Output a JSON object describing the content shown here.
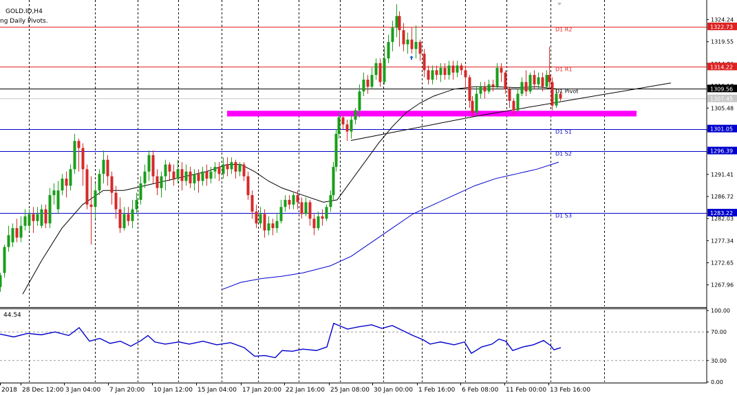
{
  "header": {
    "symbol": "GOLD.ID,H4",
    "indicator": "ng Daily Pivots."
  },
  "rsi_panel": {
    "label": "44.54"
  },
  "chart_data": {
    "type": "candlestick",
    "symbol": "GOLD.ID",
    "timeframe": "H4",
    "price_axis": {
      "range": [
        1263.4,
        1328.4
      ],
      "ticks": [
        1324.24,
        1319.55,
        1314.86,
        1310.17,
        1305.48,
        1300.79,
        1296.1,
        1291.41,
        1286.72,
        1282.03,
        1277.34,
        1272.65,
        1267.96
      ]
    },
    "rsi_axis": {
      "range": [
        0,
        100
      ],
      "ticks": [
        "100.00",
        "70.00",
        "30.00",
        "0.00"
      ]
    },
    "x_tick_labels": [
      "2018",
      "28 Dec 12:00",
      "3 Jan 04:00",
      "7 Jan 20:00",
      "10 Jan 12:00",
      "15 Jan 04:00",
      "17 Jan 20:00",
      "22 Jan 16:00",
      "25 Jan 08:00",
      "30 Jan 00:00",
      "1 Feb 16:00",
      "6 Feb 08:00",
      "11 Feb 00:00",
      "13 Feb 16:00"
    ],
    "pivot_levels": [
      {
        "name": "D1 R2",
        "price": 1322.73,
        "price_label": "1322.73",
        "color": "#dd2222"
      },
      {
        "name": "D1 R1",
        "price": 1314.22,
        "price_label": "1314.22",
        "color": "#dd2222"
      },
      {
        "name": "D1 Pivot",
        "price": 1309.56,
        "price_label": "1309.56",
        "color": "#000000"
      },
      {
        "name": "D1 S1",
        "price": 1301.05,
        "price_label": "1301.05",
        "color": "#0000cc"
      },
      {
        "name": "D1 S2",
        "price": 1296.39,
        "price_label": "1296.39",
        "color": "#0000cc"
      },
      {
        "name": "D1 S3",
        "price": 1283.22,
        "price_label": "1283.22",
        "color": "#0000cc"
      }
    ],
    "current_price": {
      "price": 1307.45,
      "label": "1307.45"
    },
    "support_zone": {
      "price_top": 1304.9,
      "price_bottom": 1303.7,
      "color": "#ff00ff"
    },
    "colors": {
      "bull": "#1a9e1a",
      "bear": "#d42a2a",
      "ma_fast": "#000000",
      "ma_slow": "#0000cc",
      "rsi": "#0000cc"
    },
    "ma_fast_path": [
      [
        33,
        1266
      ],
      [
        60,
        1273
      ],
      [
        90,
        1280
      ],
      [
        120,
        1285
      ],
      [
        150,
        1288
      ],
      [
        180,
        1288
      ],
      [
        210,
        1289
      ],
      [
        240,
        1290
      ],
      [
        270,
        1291
      ],
      [
        300,
        1292
      ],
      [
        330,
        1293.5
      ],
      [
        350,
        1293.5
      ],
      [
        370,
        1292
      ],
      [
        390,
        1290
      ],
      [
        410,
        1288.5
      ],
      [
        440,
        1287
      ],
      [
        470,
        1285.5
      ],
      [
        490,
        1286
      ],
      [
        510,
        1290
      ],
      [
        530,
        1294
      ],
      [
        550,
        1298
      ],
      [
        570,
        1301.5
      ],
      [
        590,
        1304.5
      ],
      [
        610,
        1306.5
      ],
      [
        630,
        1308
      ],
      [
        660,
        1309.5
      ],
      [
        690,
        1310
      ],
      [
        720,
        1310
      ],
      [
        750,
        1309.8
      ],
      [
        780,
        1310
      ],
      [
        810,
        1309.5
      ]
    ],
    "ma_slow_path": [
      [
        323,
        1267
      ],
      [
        350,
        1268.5
      ],
      [
        380,
        1269.3
      ],
      [
        410,
        1269.8
      ],
      [
        440,
        1270.5
      ],
      [
        480,
        1272
      ],
      [
        510,
        1274
      ],
      [
        540,
        1277
      ],
      [
        570,
        1280
      ],
      [
        600,
        1283
      ],
      [
        630,
        1285
      ],
      [
        660,
        1287
      ],
      [
        690,
        1289
      ],
      [
        720,
        1290.5
      ],
      [
        750,
        1291.5
      ],
      [
        780,
        1292.5
      ],
      [
        812,
        1294
      ]
    ],
    "trendline_path": [
      [
        510,
        1298.6
      ],
      [
        690,
        1303.7
      ],
      [
        975,
        1310.8
      ]
    ],
    "rsi_path": [
      [
        0,
        67
      ],
      [
        20,
        63
      ],
      [
        40,
        68
      ],
      [
        60,
        66
      ],
      [
        80,
        70
      ],
      [
        100,
        65
      ],
      [
        115,
        76
      ],
      [
        130,
        57
      ],
      [
        145,
        61
      ],
      [
        160,
        54
      ],
      [
        175,
        57
      ],
      [
        190,
        50
      ],
      [
        205,
        58
      ],
      [
        215,
        65
      ],
      [
        225,
        56
      ],
      [
        240,
        53
      ],
      [
        260,
        56
      ],
      [
        275,
        53
      ],
      [
        295,
        57
      ],
      [
        315,
        52
      ],
      [
        335,
        55
      ],
      [
        355,
        48
      ],
      [
        370,
        36
      ],
      [
        385,
        37
      ],
      [
        400,
        34
      ],
      [
        410,
        44
      ],
      [
        425,
        43
      ],
      [
        440,
        46
      ],
      [
        460,
        44
      ],
      [
        475,
        49
      ],
      [
        485,
        82
      ],
      [
        495,
        78
      ],
      [
        505,
        74
      ],
      [
        520,
        77
      ],
      [
        540,
        80
      ],
      [
        555,
        75
      ],
      [
        570,
        79
      ],
      [
        585,
        72
      ],
      [
        600,
        65
      ],
      [
        615,
        59
      ],
      [
        625,
        53
      ],
      [
        640,
        56
      ],
      [
        660,
        52
      ],
      [
        675,
        56
      ],
      [
        685,
        40
      ],
      [
        700,
        49
      ],
      [
        715,
        53
      ],
      [
        725,
        60
      ],
      [
        735,
        57
      ],
      [
        745,
        44
      ],
      [
        760,
        49
      ],
      [
        775,
        52
      ],
      [
        790,
        58
      ],
      [
        800,
        51
      ],
      [
        805,
        45
      ],
      [
        815,
        48
      ]
    ],
    "candles": [
      [
        0,
        1267.5,
        1270.0,
        1266.5,
        1270.5
      ],
      [
        6,
        1270.5,
        1276.0,
        1269.5,
        1276.5
      ],
      [
        12,
        1276.0,
        1278.5,
        1275.0,
        1280.5
      ],
      [
        18,
        1277.0,
        1280.0,
        1276.0,
        1281.0
      ],
      [
        24,
        1280.0,
        1278.0,
        1277.0,
        1282.0
      ],
      [
        30,
        1278.0,
        1280.5,
        1277.0,
        1282.5
      ],
      [
        36,
        1280.5,
        1282.5,
        1279.5,
        1284.0
      ],
      [
        42,
        1280.5,
        1283.0,
        1279.5,
        1284.0
      ],
      [
        48,
        1283.0,
        1281.5,
        1279.0,
        1284.5
      ],
      [
        54,
        1281.5,
        1283.0,
        1280.5,
        1284.5
      ],
      [
        60,
        1280.5,
        1284.0,
        1280.0,
        1285.0
      ],
      [
        66,
        1284.0,
        1281.0,
        1280.0,
        1285.0
      ],
      [
        72,
        1281.0,
        1287.0,
        1280.0,
        1288.5
      ],
      [
        78,
        1287.0,
        1288.0,
        1285.0,
        1289.5
      ],
      [
        84,
        1284.0,
        1288.0,
        1283.0,
        1290.0
      ],
      [
        90,
        1288.0,
        1290.5,
        1287.0,
        1291.5
      ],
      [
        96,
        1290.5,
        1289.0,
        1286.5,
        1292.0
      ],
      [
        102,
        1289.0,
        1292.5,
        1288.0,
        1293.5
      ],
      [
        108,
        1292.5,
        1298.5,
        1291.5,
        1300.0
      ],
      [
        114,
        1298.5,
        1297.0,
        1292.0,
        1299.0
      ],
      [
        120,
        1297.0,
        1292.5,
        1289.0,
        1298.0
      ],
      [
        126,
        1292.5,
        1285.0,
        1284.0,
        1293.5
      ],
      [
        132,
        1285.0,
        1284.5,
        1276.5,
        1291.0
      ],
      [
        138,
        1284.5,
        1288.0,
        1282.0,
        1289.5
      ],
      [
        144,
        1288.0,
        1291.5,
        1287.0,
        1292.5
      ],
      [
        150,
        1291.5,
        1294.5,
        1289.5,
        1296.5
      ],
      [
        156,
        1294.5,
        1291.0,
        1289.0,
        1295.5
      ],
      [
        162,
        1291.0,
        1287.5,
        1285.0,
        1292.0
      ],
      [
        168,
        1287.5,
        1284.0,
        1282.0,
        1289.0
      ],
      [
        174,
        1284.0,
        1280.0,
        1279.0,
        1286.5
      ],
      [
        180,
        1280.0,
        1283.0,
        1279.5,
        1284.5
      ],
      [
        186,
        1283.0,
        1281.5,
        1280.5,
        1284.5
      ],
      [
        192,
        1281.5,
        1284.0,
        1280.0,
        1286.0
      ],
      [
        198,
        1284.0,
        1286.0,
        1283.0,
        1287.5
      ],
      [
        204,
        1286.0,
        1289.5,
        1285.0,
        1291.0
      ],
      [
        210,
        1289.5,
        1292.0,
        1288.5,
        1293.5
      ],
      [
        216,
        1292.0,
        1295.5,
        1290.0,
        1296.5
      ],
      [
        222,
        1295.5,
        1291.0,
        1289.5,
        1296.5
      ],
      [
        228,
        1291.0,
        1288.5,
        1287.0,
        1292.5
      ],
      [
        234,
        1288.5,
        1291.0,
        1286.5,
        1292.0
      ],
      [
        240,
        1291.0,
        1293.5,
        1288.0,
        1294.5
      ],
      [
        246,
        1293.5,
        1292.0,
        1290.0,
        1294.0
      ],
      [
        252,
        1292.0,
        1290.5,
        1289.0,
        1293.5
      ],
      [
        258,
        1290.5,
        1292.5,
        1289.5,
        1294.5
      ],
      [
        264,
        1292.5,
        1290.0,
        1288.0,
        1294.0
      ],
      [
        270,
        1290.0,
        1292.0,
        1289.0,
        1293.5
      ],
      [
        276,
        1292.0,
        1289.5,
        1288.5,
        1293.0
      ],
      [
        282,
        1289.5,
        1291.5,
        1288.0,
        1292.5
      ],
      [
        288,
        1291.5,
        1290.0,
        1287.5,
        1292.5
      ],
      [
        294,
        1290.0,
        1292.0,
        1289.0,
        1293.0
      ],
      [
        300,
        1292.0,
        1290.5,
        1289.0,
        1293.5
      ],
      [
        306,
        1290.5,
        1292.0,
        1289.5,
        1293.0
      ],
      [
        312,
        1292.0,
        1293.0,
        1290.5,
        1294.0
      ],
      [
        318,
        1293.0,
        1291.5,
        1290.0,
        1294.0
      ],
      [
        324,
        1291.5,
        1293.5,
        1290.5,
        1295.0
      ],
      [
        330,
        1293.5,
        1292.5,
        1291.0,
        1295.0
      ],
      [
        336,
        1292.5,
        1294.0,
        1291.5,
        1295.0
      ],
      [
        342,
        1294.0,
        1292.0,
        1290.5,
        1294.5
      ],
      [
        348,
        1292.0,
        1293.5,
        1291.0,
        1294.0
      ],
      [
        354,
        1293.5,
        1291.0,
        1290.0,
        1294.0
      ],
      [
        360,
        1291.0,
        1287.0,
        1286.0,
        1292.0
      ],
      [
        366,
        1287.0,
        1283.5,
        1282.0,
        1288.0
      ],
      [
        372,
        1283.5,
        1281.0,
        1280.0,
        1285.0
      ],
      [
        378,
        1281.0,
        1283.0,
        1280.0,
        1284.5
      ],
      [
        384,
        1283.0,
        1279.5,
        1278.0,
        1284.0
      ],
      [
        390,
        1279.5,
        1281.0,
        1278.5,
        1282.5
      ],
      [
        396,
        1281.0,
        1280.0,
        1278.5,
        1282.0
      ],
      [
        402,
        1280.0,
        1281.5,
        1279.0,
        1283.0
      ],
      [
        408,
        1281.5,
        1284.5,
        1281.0,
        1286.0
      ],
      [
        414,
        1284.5,
        1286.0,
        1283.5,
        1287.0
      ],
      [
        420,
        1286.0,
        1285.0,
        1284.0,
        1287.0
      ],
      [
        426,
        1285.0,
        1287.0,
        1284.0,
        1287.5
      ],
      [
        432,
        1287.0,
        1285.5,
        1284.0,
        1288.0
      ],
      [
        438,
        1285.5,
        1283.0,
        1282.0,
        1286.5
      ],
      [
        444,
        1283.0,
        1285.5,
        1282.5,
        1286.5
      ],
      [
        450,
        1285.5,
        1282.0,
        1280.5,
        1286.0
      ],
      [
        456,
        1282.0,
        1280.0,
        1278.5,
        1283.0
      ],
      [
        462,
        1280.0,
        1282.5,
        1279.5,
        1283.5
      ],
      [
        468,
        1282.5,
        1282.0,
        1280.5,
        1284.0
      ],
      [
        474,
        1282.0,
        1284.5,
        1281.5,
        1285.0
      ],
      [
        480,
        1284.5,
        1287.0,
        1283.5,
        1288.0
      ],
      [
        484,
        1287.0,
        1293.0,
        1286.0,
        1294.0
      ],
      [
        488,
        1293.0,
        1300.0,
        1292.0,
        1301.0
      ],
      [
        492,
        1300.0,
        1303.5,
        1299.0,
        1304.5
      ],
      [
        498,
        1303.5,
        1302.0,
        1301.0,
        1304.0
      ],
      [
        504,
        1302.0,
        1300.5,
        1298.5,
        1303.0
      ],
      [
        510,
        1300.5,
        1303.0,
        1299.0,
        1304.0
      ],
      [
        516,
        1303.0,
        1305.0,
        1302.0,
        1305.5
      ],
      [
        522,
        1305.0,
        1309.0,
        1303.5,
        1310.5
      ],
      [
        528,
        1309.0,
        1311.5,
        1308.0,
        1313.0
      ],
      [
        534,
        1311.5,
        1310.0,
        1308.5,
        1312.5
      ],
      [
        540,
        1310.0,
        1312.5,
        1309.5,
        1314.0
      ],
      [
        546,
        1312.5,
        1315.0,
        1311.5,
        1316.0
      ],
      [
        552,
        1315.0,
        1311.0,
        1310.0,
        1316.0
      ],
      [
        558,
        1311.0,
        1316.0,
        1310.5,
        1318.5
      ],
      [
        564,
        1316.0,
        1319.5,
        1315.0,
        1321.0
      ],
      [
        570,
        1319.5,
        1322.5,
        1317.5,
        1324.0
      ],
      [
        576,
        1322.5,
        1325.0,
        1320.5,
        1327.5
      ],
      [
        580,
        1325.0,
        1322.0,
        1318.5,
        1326.0
      ],
      [
        586,
        1322.0,
        1319.0,
        1317.5,
        1323.5
      ],
      [
        592,
        1319.0,
        1320.0,
        1317.0,
        1321.5
      ],
      [
        598,
        1320.0,
        1318.0,
        1317.0,
        1322.5
      ],
      [
        604,
        1318.0,
        1319.5,
        1316.0,
        1323.0
      ],
      [
        610,
        1319.5,
        1317.0,
        1315.5,
        1320.0
      ],
      [
        616,
        1317.0,
        1313.5,
        1312.0,
        1318.0
      ],
      [
        622,
        1313.5,
        1311.5,
        1310.5,
        1314.5
      ],
      [
        628,
        1311.5,
        1313.5,
        1310.5,
        1314.5
      ],
      [
        634,
        1313.5,
        1312.5,
        1311.5,
        1314.5
      ],
      [
        640,
        1312.5,
        1314.0,
        1311.0,
        1315.0
      ],
      [
        646,
        1314.0,
        1312.5,
        1311.5,
        1315.0
      ],
      [
        652,
        1312.5,
        1314.5,
        1311.5,
        1315.5
      ],
      [
        658,
        1314.5,
        1313.0,
        1311.5,
        1315.5
      ],
      [
        664,
        1313.0,
        1314.5,
        1312.0,
        1315.5
      ],
      [
        670,
        1314.5,
        1313.5,
        1312.5,
        1315.0
      ],
      [
        676,
        1313.5,
        1312.0,
        1309.5,
        1314.5
      ],
      [
        682,
        1312.0,
        1307.0,
        1305.5,
        1312.5
      ],
      [
        686,
        1307.0,
        1304.5,
        1303.5,
        1308.0
      ],
      [
        692,
        1304.5,
        1308.5,
        1304.0,
        1310.0
      ],
      [
        698,
        1308.5,
        1310.0,
        1307.5,
        1311.0
      ],
      [
        704,
        1310.0,
        1309.0,
        1307.5,
        1311.0
      ],
      [
        710,
        1309.0,
        1310.5,
        1308.5,
        1311.5
      ],
      [
        716,
        1310.5,
        1310.0,
        1309.0,
        1311.5
      ],
      [
        722,
        1310.0,
        1314.0,
        1309.5,
        1315.0
      ],
      [
        728,
        1314.0,
        1313.0,
        1311.0,
        1315.0
      ],
      [
        734,
        1313.0,
        1309.5,
        1308.5,
        1313.5
      ],
      [
        740,
        1309.5,
        1307.0,
        1305.5,
        1310.0
      ],
      [
        746,
        1307.0,
        1305.0,
        1304.0,
        1307.5
      ],
      [
        752,
        1305.0,
        1308.5,
        1304.5,
        1309.5
      ],
      [
        758,
        1308.5,
        1311.0,
        1308.0,
        1312.0
      ],
      [
        764,
        1311.0,
        1309.0,
        1308.0,
        1313.5
      ],
      [
        770,
        1309.0,
        1312.5,
        1308.5,
        1313.0
      ],
      [
        776,
        1312.5,
        1310.5,
        1309.5,
        1313.5
      ],
      [
        782,
        1310.5,
        1312.0,
        1309.5,
        1313.0
      ],
      [
        788,
        1312.0,
        1310.0,
        1309.0,
        1313.0
      ],
      [
        794,
        1310.0,
        1312.5,
        1309.5,
        1313.5
      ],
      [
        798,
        1312.5,
        1311.0,
        1309.5,
        1318.5
      ],
      [
        802,
        1311.0,
        1306.0,
        1305.0,
        1312.0
      ],
      [
        808,
        1306.0,
        1308.5,
        1305.5,
        1309.5
      ],
      [
        814,
        1308.5,
        1307.5,
        1307.0,
        1309.0
      ]
    ]
  }
}
